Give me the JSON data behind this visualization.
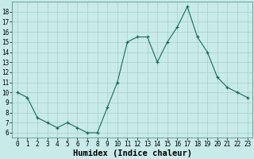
{
  "x": [
    0,
    1,
    2,
    3,
    4,
    5,
    6,
    7,
    8,
    9,
    10,
    11,
    12,
    13,
    14,
    15,
    16,
    17,
    18,
    19,
    20,
    21,
    22,
    23
  ],
  "y": [
    10,
    9.5,
    7.5,
    7,
    6.5,
    7,
    6.5,
    6,
    6,
    8.5,
    11,
    15,
    15.5,
    15.5,
    13,
    15,
    16.5,
    18.5,
    15.5,
    14,
    11.5,
    10.5,
    10,
    9.5
  ],
  "line_color": "#1a6b5a",
  "marker_color": "#1a6b5a",
  "bg_color": "#c8eae8",
  "grid_color": "#a8d0ce",
  "xlabel": "Humidex (Indice chaleur)",
  "ylim": [
    5.5,
    19
  ],
  "xlim": [
    -0.5,
    23.5
  ],
  "yticks": [
    6,
    7,
    8,
    9,
    10,
    11,
    12,
    13,
    14,
    15,
    16,
    17,
    18
  ],
  "xtick_labels": [
    "0",
    "1",
    "2",
    "3",
    "4",
    "5",
    "6",
    "7",
    "8",
    "9",
    "10",
    "11",
    "12",
    "13",
    "14",
    "15",
    "16",
    "17",
    "18",
    "19",
    "20",
    "21",
    "22",
    "23"
  ],
  "tick_fontsize": 5.5,
  "xlabel_fontsize": 7.5
}
